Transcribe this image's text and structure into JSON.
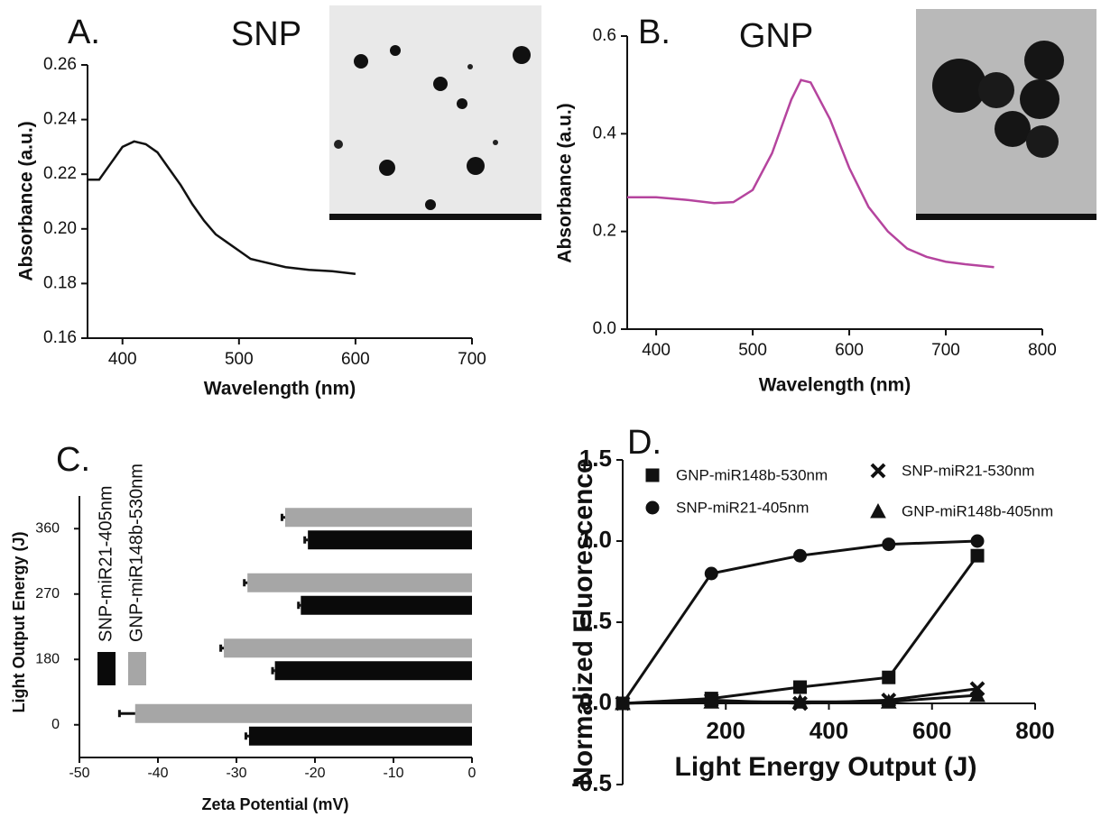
{
  "chart_data": [
    {
      "type": "line",
      "panel_label": "A.",
      "title": "SNP",
      "x_label": "Wavelength (nm)",
      "y_label": "Absorbance (a.u.)",
      "x": [
        370,
        380,
        390,
        400,
        410,
        420,
        430,
        440,
        450,
        460,
        470,
        480,
        490,
        500,
        510,
        520,
        540,
        560,
        580,
        600
      ],
      "values": [
        0.218,
        0.218,
        0.224,
        0.23,
        0.232,
        0.231,
        0.228,
        0.222,
        0.216,
        0.209,
        0.203,
        0.198,
        0.195,
        0.192,
        0.189,
        0.188,
        0.186,
        0.185,
        0.1845,
        0.1835
      ],
      "color": "#111111",
      "xlim": [
        370,
        700
      ],
      "xticks": [
        400,
        500,
        600,
        700
      ],
      "ylim": [
        0.16,
        0.26
      ],
      "yticks": [
        0.16,
        0.18,
        {
          "value": 0.2,
          "label": "0.20"
        },
        0.22,
        0.24,
        0.26
      ]
    },
    {
      "type": "line",
      "panel_label": "B.",
      "title": "GNP",
      "x_label": "Wavelength (nm)",
      "y_label": "Absorbance (a.u.)",
      "x": [
        370,
        400,
        430,
        460,
        480,
        500,
        520,
        540,
        550,
        560,
        580,
        600,
        620,
        640,
        660,
        680,
        700,
        720,
        750
      ],
      "values": [
        0.27,
        0.27,
        0.265,
        0.258,
        0.26,
        0.285,
        0.36,
        0.47,
        0.51,
        0.505,
        0.43,
        0.33,
        0.25,
        0.2,
        0.165,
        0.148,
        0.138,
        0.133,
        0.127
      ],
      "color": "#b5449e",
      "xlim": [
        370,
        800
      ],
      "xticks": [
        400,
        500,
        600,
        700,
        800
      ],
      "ylim": [
        0,
        0.6
      ],
      "yticks": [
        {
          "value": 0,
          "label": "0.0"
        },
        0.2,
        0.4,
        0.6
      ]
    },
    {
      "type": "bar",
      "orientation": "horizontal",
      "panel_label": "C.",
      "x_label": "Zeta Potential (mV)",
      "y_label": "Light Output Energy (J)",
      "categories": [
        "0",
        "180",
        "270",
        "360"
      ],
      "series": [
        {
          "name": "SNP-miR21-405nm",
          "color": "#0a0a0a",
          "values": [
            -28.4,
            -25.1,
            -21.8,
            -20.9
          ],
          "errors": [
            0.4,
            0.3,
            0.3,
            0.4
          ]
        },
        {
          "name": "GNP-miR148b-530nm",
          "color": "#a6a6a6",
          "values": [
            -42.9,
            -31.6,
            -28.6,
            -23.8
          ],
          "errors": [
            2,
            0.4,
            0.4,
            0.4
          ]
        }
      ],
      "xlim": [
        -50,
        0
      ],
      "xticks": [
        -50,
        -40,
        -30,
        -20,
        -10,
        0
      ]
    },
    {
      "type": "line",
      "panel_label": "D.",
      "x_label": "Light Energy Output (J)",
      "y_label": "Normalized Fluorescence",
      "x": [
        0,
        172,
        344,
        516,
        688
      ],
      "series": [
        {
          "name": "GNP-miR148b-530nm",
          "marker": "square",
          "color": "#111111",
          "values": [
            0,
            0.03,
            0.1,
            0.16,
            0.91
          ]
        },
        {
          "name": "SNP-miR21-405nm",
          "marker": "circle",
          "color": "#111111",
          "values": [
            0,
            0.8,
            0.91,
            0.98,
            1.0
          ]
        },
        {
          "name": "SNP-miR21-530nm",
          "marker": "cross",
          "color": "#111111",
          "values": [
            0,
            0.02,
            0,
            0.02,
            0.09
          ]
        },
        {
          "name": "GNP-miR148b-405nm",
          "marker": "triangle",
          "color": "#111111",
          "values": [
            0,
            0.01,
            0.01,
            0.01,
            0.05
          ]
        }
      ],
      "xlim": [
        0,
        800
      ],
      "xticks": [
        200,
        400,
        600,
        800
      ],
      "ylim": [
        -0.5,
        1.5
      ],
      "yticks": [
        -0.5,
        {
          "value": 0,
          "label": "0.0"
        },
        0.5,
        {
          "value": 1,
          "label": "1.0"
        },
        1.5
      ]
    }
  ]
}
